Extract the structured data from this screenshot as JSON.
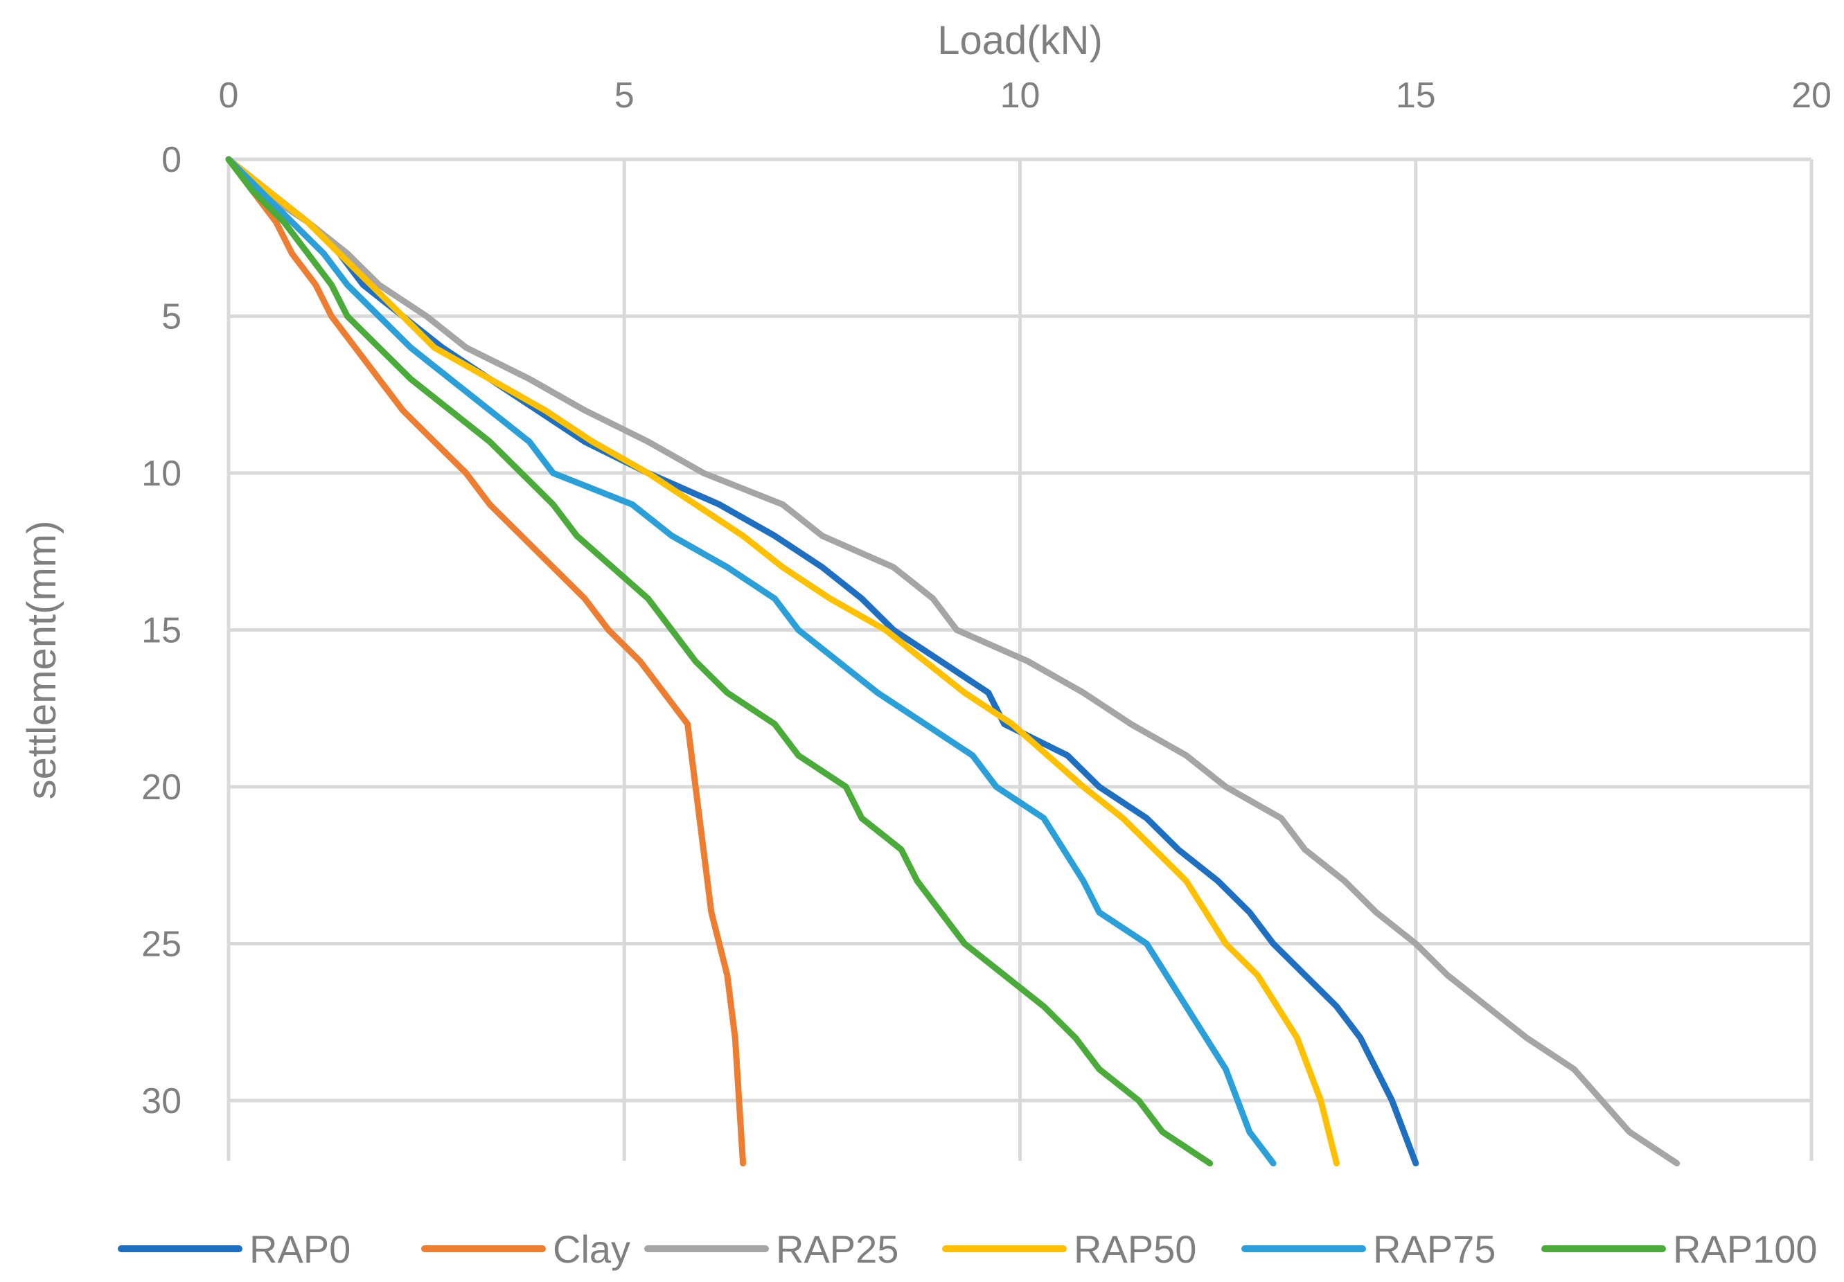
{
  "chart_data": {
    "type": "line",
    "title": "",
    "xlabel": "Load(kN)",
    "ylabel": "settlement(mm)",
    "xlim": [
      0,
      20
    ],
    "ylim": [
      0,
      32
    ],
    "x_ticks": [
      "0",
      "5",
      "10",
      "15",
      "20"
    ],
    "y_ticks": [
      "0",
      "5",
      "10",
      "15",
      "20",
      "25",
      "30"
    ],
    "x_axis_position": "top",
    "y_axis_inverted": true,
    "grid": true,
    "legend_position": "bottom",
    "series": [
      {
        "name": "RAP0",
        "color": "#1f6fc0",
        "x": [
          0,
          0.5,
          1.0,
          1.4,
          1.7,
          2.2,
          2.7,
          3.3,
          3.9,
          4.5,
          5.3,
          6.2,
          6.9,
          7.5,
          8.0,
          8.4,
          9.0,
          9.6,
          9.8,
          10.6,
          11.0,
          11.6,
          12.0,
          12.5,
          12.9,
          13.2,
          13.6,
          14.0,
          14.3,
          14.7,
          15.0
        ],
        "y": [
          0,
          1,
          2,
          3,
          4,
          5,
          6,
          7,
          8,
          9,
          10,
          11,
          12,
          13,
          14,
          15,
          16,
          17,
          18,
          19,
          20,
          21,
          22,
          23,
          24,
          25,
          26,
          27,
          28,
          30,
          32
        ]
      },
      {
        "name": "Clay",
        "color": "#ed7d31",
        "x": [
          0,
          0.3,
          0.6,
          0.8,
          1.1,
          1.3,
          1.6,
          1.9,
          2.2,
          2.6,
          3.0,
          3.3,
          3.7,
          4.1,
          4.5,
          4.8,
          5.2,
          5.5,
          5.8,
          5.9,
          6.0,
          6.1,
          6.3,
          6.4,
          6.5
        ],
        "y": [
          0,
          1,
          2,
          3,
          4,
          5,
          6,
          7,
          8,
          9,
          10,
          11,
          12,
          13,
          14,
          15,
          16,
          17,
          18,
          20,
          22,
          24,
          26,
          28,
          32
        ]
      },
      {
        "name": "RAP25",
        "color": "#a5a5a5",
        "x": [
          0,
          0.4,
          1.0,
          1.5,
          1.9,
          2.5,
          3.0,
          3.8,
          4.5,
          5.3,
          6.0,
          7.0,
          7.5,
          8.4,
          8.9,
          9.2,
          10.1,
          10.8,
          11.4,
          12.1,
          12.6,
          13.3,
          13.6,
          14.1,
          14.5,
          15.0,
          15.4,
          15.9,
          16.4,
          17.0,
          17.7,
          18.3
        ],
        "y": [
          0,
          1,
          2,
          3,
          4,
          5,
          6,
          7,
          8,
          9,
          10,
          11,
          12,
          13,
          14,
          15,
          16,
          17,
          18,
          19,
          20,
          21,
          22,
          23,
          24,
          25,
          26,
          27,
          28,
          29,
          31,
          32
        ]
      },
      {
        "name": "RAP50",
        "color": "#ffc000",
        "x": [
          0,
          0.5,
          1.0,
          1.4,
          1.8,
          2.2,
          2.6,
          3.3,
          4.0,
          4.6,
          5.3,
          5.9,
          6.5,
          7.0,
          7.6,
          8.3,
          9.3,
          9.9,
          10.8,
          11.3,
          11.7,
          12.1,
          12.6,
          13.0,
          13.5,
          13.8,
          14.0
        ],
        "y": [
          0,
          1,
          2,
          3,
          4,
          5,
          6,
          7,
          8,
          9,
          10,
          11,
          12,
          13,
          14,
          15,
          17,
          18,
          20,
          21,
          22,
          23,
          25,
          26,
          28,
          30,
          32
        ]
      },
      {
        "name": "RAP75",
        "color": "#2a9fd8",
        "x": [
          0,
          0.4,
          0.8,
          1.2,
          1.5,
          1.9,
          2.3,
          2.8,
          3.3,
          3.8,
          4.1,
          5.1,
          5.6,
          6.3,
          6.9,
          7.2,
          8.2,
          8.8,
          9.4,
          9.7,
          10.3,
          10.8,
          11.0,
          11.6,
          12.1,
          12.6,
          12.9,
          13.2
        ],
        "y": [
          0,
          1,
          2,
          3,
          4,
          5,
          6,
          7,
          8,
          9,
          10,
          11,
          12,
          13,
          14,
          15,
          17,
          18,
          19,
          20,
          21,
          23,
          24,
          25,
          27,
          29,
          31,
          32
        ]
      },
      {
        "name": "RAP100",
        "color": "#4aaa3a",
        "x": [
          0,
          0.3,
          0.7,
          1.0,
          1.3,
          1.5,
          1.9,
          2.3,
          2.8,
          3.3,
          3.7,
          4.1,
          4.4,
          5.3,
          5.9,
          6.3,
          6.9,
          7.2,
          7.8,
          8.0,
          8.5,
          8.7,
          9.3,
          9.8,
          10.3,
          10.7,
          11.0,
          11.5,
          11.8,
          12.4
        ],
        "y": [
          0,
          1,
          2,
          3,
          4,
          5,
          6,
          7,
          8,
          9,
          10,
          11,
          12,
          14,
          16,
          17,
          18,
          19,
          20,
          21,
          22,
          23,
          25,
          26,
          27,
          28,
          29,
          30,
          31,
          32
        ]
      }
    ]
  }
}
